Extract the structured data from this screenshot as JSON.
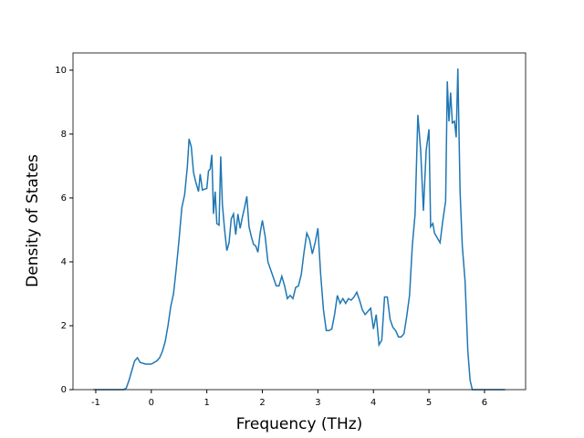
{
  "chart_data": {
    "type": "line",
    "xlabel": "Frequency (THz)",
    "ylabel": "Density of States",
    "x": [
      -1.04,
      -0.5,
      -0.45,
      -0.4,
      -0.35,
      -0.3,
      -0.25,
      -0.2,
      -0.1,
      0,
      0.1,
      0.15,
      0.2,
      0.25,
      0.3,
      0.35,
      0.4,
      0.45,
      0.5,
      0.55,
      0.6,
      0.65,
      0.68,
      0.72,
      0.76,
      0.8,
      0.85,
      0.88,
      0.92,
      1.0,
      1.03,
      1.06,
      1.09,
      1.12,
      1.15,
      1.18,
      1.22,
      1.25,
      1.28,
      1.32,
      1.36,
      1.4,
      1.44,
      1.48,
      1.52,
      1.56,
      1.6,
      1.64,
      1.68,
      1.72,
      1.76,
      1.8,
      1.84,
      1.88,
      1.92,
      1.96,
      2.0,
      2.05,
      2.1,
      2.15,
      2.2,
      2.25,
      2.3,
      2.35,
      2.4,
      2.45,
      2.5,
      2.55,
      2.6,
      2.65,
      2.7,
      2.75,
      2.8,
      2.85,
      2.9,
      2.95,
      3.0,
      3.05,
      3.1,
      3.15,
      3.2,
      3.25,
      3.3,
      3.35,
      3.4,
      3.45,
      3.5,
      3.55,
      3.6,
      3.65,
      3.7,
      3.75,
      3.8,
      3.85,
      3.9,
      3.95,
      4.0,
      4.05,
      4.1,
      4.15,
      4.2,
      4.25,
      4.3,
      4.35,
      4.4,
      4.45,
      4.5,
      4.55,
      4.6,
      4.65,
      4.7,
      4.75,
      4.8,
      4.85,
      4.9,
      4.95,
      5.0,
      5.03,
      5.07,
      5.1,
      5.15,
      5.2,
      5.25,
      5.3,
      5.33,
      5.36,
      5.39,
      5.42,
      5.46,
      5.49,
      5.52,
      5.56,
      5.6,
      5.65,
      5.7,
      5.74,
      5.78,
      6.37
    ],
    "series": [
      {
        "name": "DOS",
        "color": "#1f77b4",
        "values": [
          0,
          0,
          0.05,
          0.3,
          0.6,
          0.9,
          1.0,
          0.85,
          0.8,
          0.8,
          0.9,
          1.0,
          1.2,
          1.5,
          2.0,
          2.6,
          3.0,
          3.8,
          4.7,
          5.7,
          6.1,
          7.0,
          7.85,
          7.6,
          6.8,
          6.5,
          6.2,
          6.75,
          6.25,
          6.3,
          6.85,
          6.9,
          7.35,
          5.5,
          6.2,
          5.2,
          5.15,
          7.3,
          5.8,
          5.0,
          4.35,
          4.6,
          5.35,
          5.5,
          4.85,
          5.5,
          5.05,
          5.4,
          5.7,
          6.05,
          5.1,
          4.8,
          4.55,
          4.5,
          4.3,
          4.9,
          5.3,
          4.8,
          4.0,
          3.75,
          3.5,
          3.25,
          3.25,
          3.55,
          3.25,
          2.85,
          2.95,
          2.85,
          3.2,
          3.25,
          3.6,
          4.3,
          4.9,
          4.7,
          4.25,
          4.6,
          5.05,
          3.6,
          2.5,
          1.85,
          1.85,
          1.9,
          2.35,
          2.95,
          2.7,
          2.85,
          2.7,
          2.85,
          2.8,
          2.9,
          3.05,
          2.8,
          2.5,
          2.35,
          2.45,
          2.55,
          1.9,
          2.35,
          1.4,
          1.55,
          2.9,
          2.9,
          2.2,
          1.95,
          1.85,
          1.65,
          1.65,
          1.75,
          2.3,
          2.95,
          4.5,
          5.5,
          8.6,
          7.5,
          5.6,
          7.5,
          8.15,
          5.1,
          5.2,
          4.9,
          4.75,
          4.6,
          5.3,
          5.9,
          9.65,
          8.4,
          9.3,
          8.35,
          8.4,
          7.9,
          10.05,
          6.2,
          4.5,
          3.4,
          1.2,
          0.3,
          0,
          0
        ]
      }
    ],
    "xlim": [
      -1.41,
      6.74
    ],
    "ylim": [
      0,
      10.54
    ],
    "xticks": [
      -1,
      0,
      1,
      2,
      3,
      4,
      5,
      6
    ],
    "yticks": [
      0,
      2,
      4,
      6,
      8,
      10
    ]
  }
}
